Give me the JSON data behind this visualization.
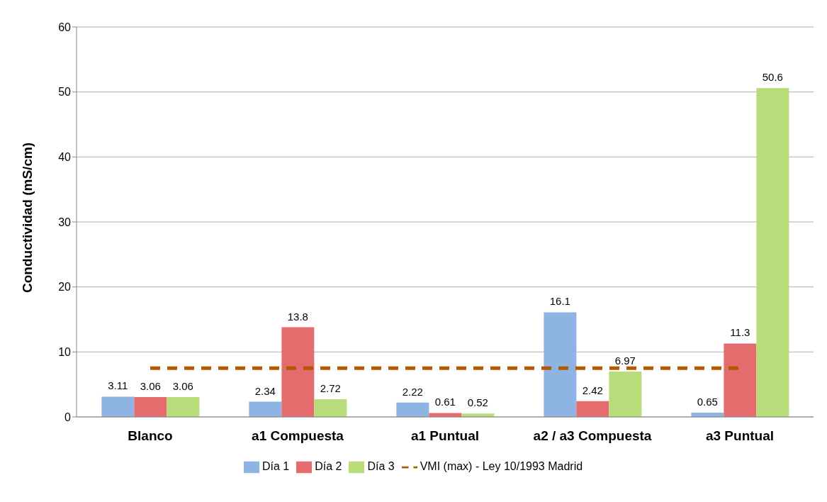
{
  "chart_data": {
    "type": "bar",
    "ylabel": "Conductividad (mS/cm)",
    "categories": [
      "Blanco",
      "a1 Compuesta",
      "a1 Puntual",
      "a2 / a3 Compuesta",
      "a3 Puntual"
    ],
    "series": [
      {
        "name": "Día 1",
        "color": "#8db4e2",
        "values": [
          3.11,
          2.34,
          2.22,
          16.1,
          0.65
        ],
        "value_labels": [
          "3.11",
          "2.34",
          "2.22",
          "16.1",
          "0.65"
        ]
      },
      {
        "name": "Día 2",
        "color": "#e46c6c",
        "values": [
          3.06,
          13.8,
          0.61,
          2.42,
          11.3
        ],
        "value_labels": [
          "3.06",
          "13.8",
          "0.61",
          "2.42",
          "11.3"
        ]
      },
      {
        "name": "Día 3",
        "color": "#b8dc7a",
        "values": [
          3.06,
          2.72,
          0.52,
          6.97,
          50.6
        ],
        "value_labels": [
          "3.06",
          "2.72",
          "0.52",
          "6.97",
          "50.6"
        ]
      },
      {
        "name": "VMI (max) - Ley 10/1993 Madrid",
        "type": "line",
        "color": "#b35a00",
        "line_style": "dashed",
        "marker": "none",
        "values": [
          7.5,
          7.5,
          7.5,
          7.5,
          7.5
        ]
      }
    ],
    "ylim": [
      0,
      60
    ],
    "yticks": [
      0,
      10,
      20,
      30,
      40,
      50,
      60
    ],
    "grid": "y",
    "legend": "bottom"
  }
}
